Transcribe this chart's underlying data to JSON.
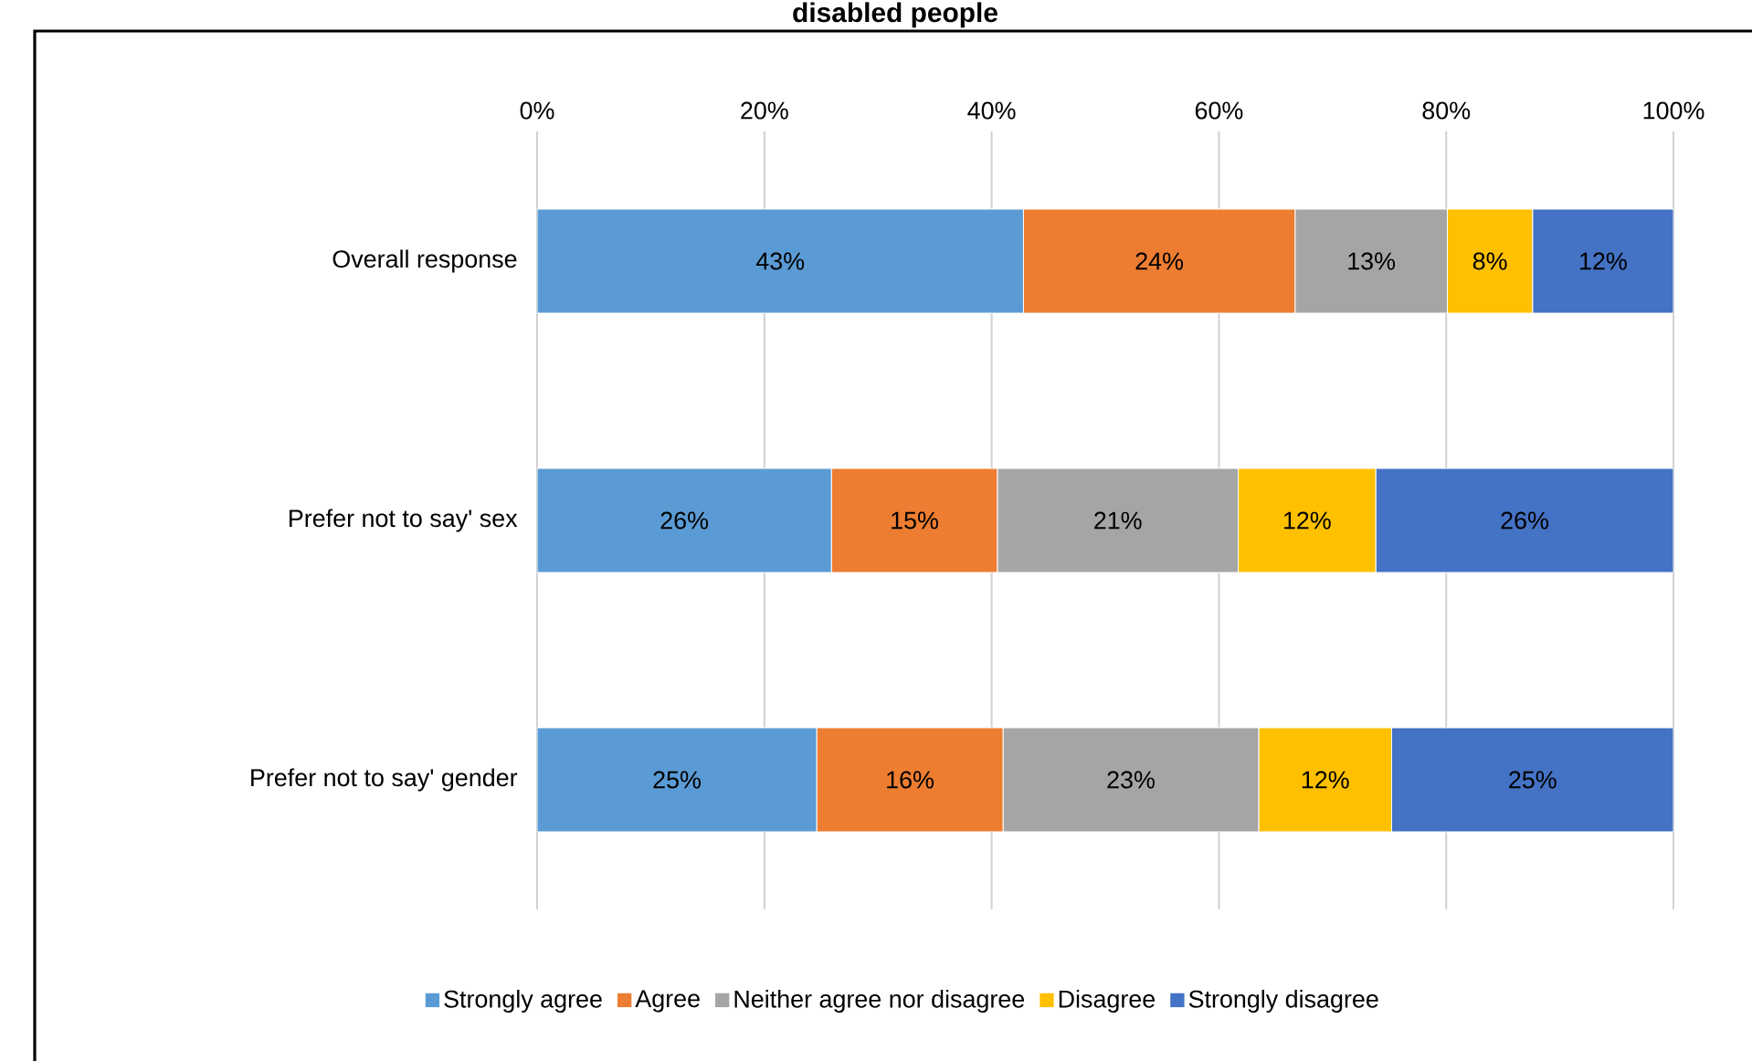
{
  "chart_data": {
    "type": "bar",
    "orientation": "horizontal",
    "stacked": true,
    "title": "disabled people",
    "categories": [
      "Overall response",
      "Prefer not to say' sex",
      "Prefer not to say' gender"
    ],
    "series": [
      {
        "name": "Strongly agree",
        "color": "#5b9bd5",
        "values": [
          42.8,
          25.9,
          24.6
        ],
        "value_labels": [
          "43%",
          "26%",
          "25%"
        ]
      },
      {
        "name": "Agree",
        "color": "#ed7d31",
        "values": [
          23.9,
          14.6,
          16.4
        ],
        "value_labels": [
          "24%",
          "15%",
          "16%"
        ]
      },
      {
        "name": "Neither agree nor disagree",
        "color": "#a5a5a5",
        "values": [
          13.4,
          21.2,
          22.5
        ],
        "value_labels": [
          "13%",
          "21%",
          "23%"
        ]
      },
      {
        "name": "Disagree",
        "color": "#ffc000",
        "values": [
          7.5,
          12.1,
          11.7
        ],
        "value_labels": [
          "8%",
          "12%",
          "12%"
        ]
      },
      {
        "name": "Strongly disagree",
        "color": "#4472c4",
        "values": [
          12.4,
          26.2,
          24.8
        ],
        "value_labels": [
          "12%",
          "26%",
          "25%"
        ]
      }
    ],
    "xlim": [
      0,
      100
    ],
    "xticks": [
      {
        "value": 0,
        "label": "0%"
      },
      {
        "value": 20,
        "label": "20%"
      },
      {
        "value": 40,
        "label": "40%"
      },
      {
        "value": 60,
        "label": "60%"
      },
      {
        "value": 80,
        "label": "80%"
      },
      {
        "value": 100,
        "label": "100%"
      }
    ],
    "grid": "x",
    "legend": "bottom"
  }
}
